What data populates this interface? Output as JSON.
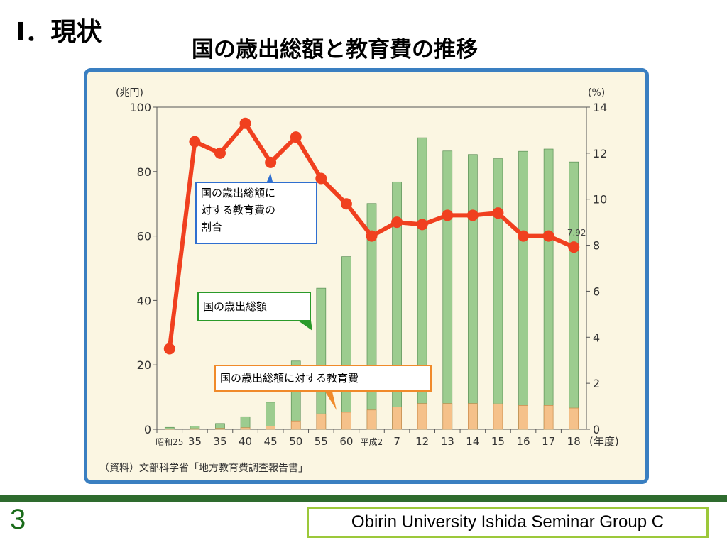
{
  "slide": {
    "section_title": "Ⅰ．現状",
    "title": "国の歳出総額と教育費の推移",
    "page_number": "3",
    "footer": "Obirin University Ishida Seminar Group C"
  },
  "callouts": {
    "ratio": [
      "国の歳出総額に",
      "対する教育費の",
      "割合"
    ],
    "total": "国の歳出総額",
    "education": "国の歳出総額に対する教育費"
  },
  "chart_data": {
    "type": "bar",
    "left_axis_unit": "(兆円)",
    "right_axis_unit": "(%)",
    "x_axis_unit": "(年度)",
    "source": "（資料）文部科学省「地方教育費調査報告書」",
    "categories": [
      "昭和25",
      "35",
      "35",
      "40",
      "45",
      "50",
      "55",
      "60",
      "平成2",
      "7",
      "12",
      "13",
      "14",
      "15",
      "16",
      "17",
      "18"
    ],
    "ylim_left": [
      0,
      100
    ],
    "yticks_left": [
      "0",
      "20",
      "40",
      "60",
      "80",
      "100"
    ],
    "ylim_right": [
      0,
      14
    ],
    "yticks_right": [
      "0",
      "2",
      "4",
      "6",
      "8",
      "10",
      "12",
      "14"
    ],
    "series": [
      {
        "name": "国の歳出総額",
        "kind": "bar",
        "color": "#9ccc8f",
        "values": [
          0.6,
          1.0,
          1.8,
          3.9,
          8.4,
          21.2,
          43.8,
          53.6,
          70.1,
          76.8,
          90.5,
          86.4,
          85.3,
          84.0,
          86.3,
          87.0,
          83.0
        ]
      },
      {
        "name": "国の歳出総額に対する教育費",
        "kind": "bar",
        "color": "#f5c18a",
        "values": [
          0.1,
          0.2,
          0.3,
          0.5,
          1.0,
          2.6,
          4.8,
          5.3,
          6.0,
          6.9,
          8.0,
          8.0,
          8.0,
          7.9,
          7.4,
          7.4,
          6.6
        ]
      },
      {
        "name": "国の歳出総額に対する教育費の割合",
        "kind": "line",
        "color": "#f0401f",
        "axis": "right",
        "values": [
          3.5,
          12.5,
          12.0,
          13.3,
          11.6,
          12.7,
          10.9,
          9.8,
          8.4,
          9.0,
          8.9,
          9.3,
          9.3,
          9.4,
          8.4,
          8.4,
          7.92
        ]
      }
    ],
    "annotations": [
      "7.92"
    ]
  },
  "colors": {
    "frame_border": "#3a7fc1",
    "plot_bg": "#fbf6e2",
    "line": "#f0401f",
    "footer_border": "#9cc83a",
    "bottom_bar": "#2e6b2e"
  }
}
